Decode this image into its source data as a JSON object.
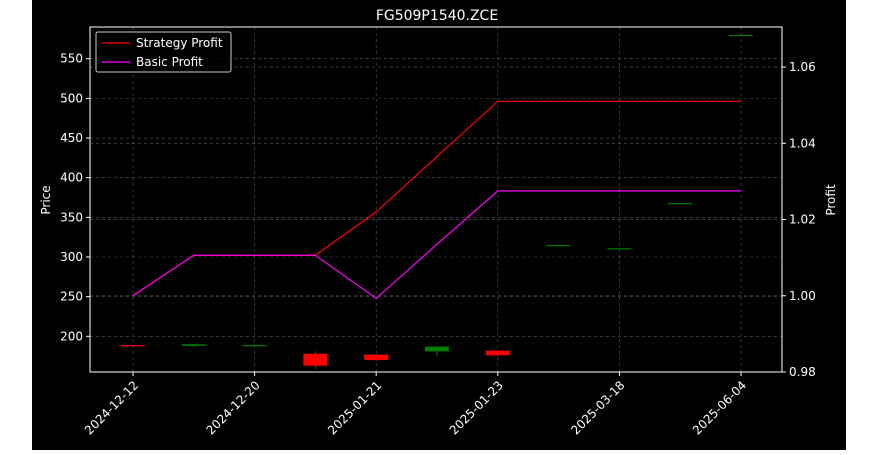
{
  "chart_data": {
    "type": "candlestick+line",
    "title": "FG509P1540.ZCE",
    "ylabel_left": "Price",
    "ylabel_right": "Profit",
    "grid": true,
    "legend_placement": "top-left",
    "x_ticks": [
      "2024-12-12",
      "2024-12-20",
      "2025-01-21",
      "2025-01-23",
      "2025-03-18",
      "2025-06-04"
    ],
    "x_tick_index": [
      0,
      2,
      4,
      6,
      8,
      10
    ],
    "y_left": {
      "lim": [
        155,
        590
      ],
      "ticks": [
        200,
        250,
        300,
        350,
        400,
        450,
        500,
        550
      ]
    },
    "y_right": {
      "lim": [
        0.98,
        1.0705
      ],
      "ticks": [
        0.98,
        1.0,
        1.02,
        1.04,
        1.06
      ],
      "tick_labels": [
        "0.98",
        "1.00",
        "1.02",
        "1.04",
        "1.06"
      ]
    },
    "candles": [
      {
        "i": 0,
        "open": 189,
        "close": 188,
        "high": 189,
        "low": 188
      },
      {
        "i": 1,
        "open": 188,
        "close": 190,
        "high": 190,
        "low": 187
      },
      {
        "i": 2,
        "open": 189,
        "close": 189,
        "high": 189,
        "low": 189
      },
      {
        "i": 3,
        "open": 178,
        "close": 163,
        "high": 181,
        "low": 159
      },
      {
        "i": 4,
        "open": 177,
        "close": 170,
        "high": 177,
        "low": 169
      },
      {
        "i": 5,
        "open": 181,
        "close": 187,
        "high": 187,
        "low": 175
      },
      {
        "i": 6,
        "open": 182,
        "close": 176,
        "high": 182,
        "low": 175
      },
      {
        "i": 7,
        "open": 315,
        "close": 315,
        "high": 315,
        "low": 315
      },
      {
        "i": 8,
        "open": 311,
        "close": 311,
        "high": 311,
        "low": 311
      },
      {
        "i": 9,
        "open": 368,
        "close": 368,
        "high": 368,
        "low": 368
      },
      {
        "i": 10,
        "open": 580,
        "close": 580,
        "high": 580,
        "low": 580
      }
    ],
    "series": [
      {
        "name": "Strategy Profit",
        "color": "#ff0000",
        "x": [
          0,
          1,
          2,
          3,
          4,
          5,
          6,
          7,
          8,
          9,
          10
        ],
        "values": [
          1.0,
          1.0106,
          1.0106,
          1.0106,
          1.022,
          1.0365,
          1.051,
          1.051,
          1.051,
          1.051,
          1.051
        ]
      },
      {
        "name": "Basic Profit",
        "color": "#ff00ff",
        "x": [
          0,
          1,
          2,
          3,
          4,
          5,
          6,
          7,
          8,
          9,
          10
        ],
        "values": [
          1.0,
          1.0106,
          1.0106,
          1.0106,
          0.9993,
          1.0135,
          1.0275,
          1.0275,
          1.0275,
          1.0275,
          1.0275
        ]
      }
    ],
    "colors": {
      "up": "#008000",
      "down": "#ff0000",
      "grid": "#808080",
      "axis": "#ffffff",
      "background": "#000000"
    }
  }
}
